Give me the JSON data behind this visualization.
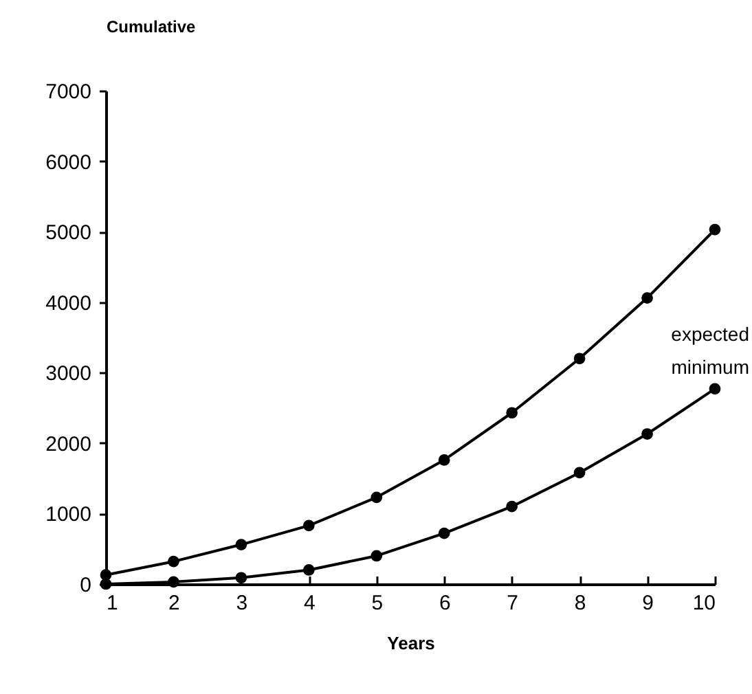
{
  "chart_data": {
    "type": "line",
    "xlabel": "Years",
    "ylabel": "Cumulative",
    "x": [
      1,
      2,
      3,
      4,
      5,
      6,
      7,
      8,
      9,
      10
    ],
    "series": [
      {
        "name": "expected",
        "color": "#000000",
        "values": [
          130,
          320,
          560,
          830,
          1230,
          1760,
          2430,
          3200,
          4060,
          5030
        ]
      },
      {
        "name": "minimum",
        "color": "#000000",
        "values": [
          0,
          30,
          90,
          200,
          400,
          720,
          1100,
          1580,
          2130,
          2770
        ]
      }
    ],
    "xlim": [
      1,
      10
    ],
    "xticks": [
      1,
      2,
      3,
      4,
      5,
      6,
      7,
      8,
      9,
      10
    ],
    "ylim": [
      0,
      7000
    ],
    "yticks": [
      0,
      1000,
      2000,
      3000,
      4000,
      5000,
      6000,
      7000
    ],
    "grid": false,
    "legend": false,
    "marker": "circle",
    "line_style": "solid"
  }
}
